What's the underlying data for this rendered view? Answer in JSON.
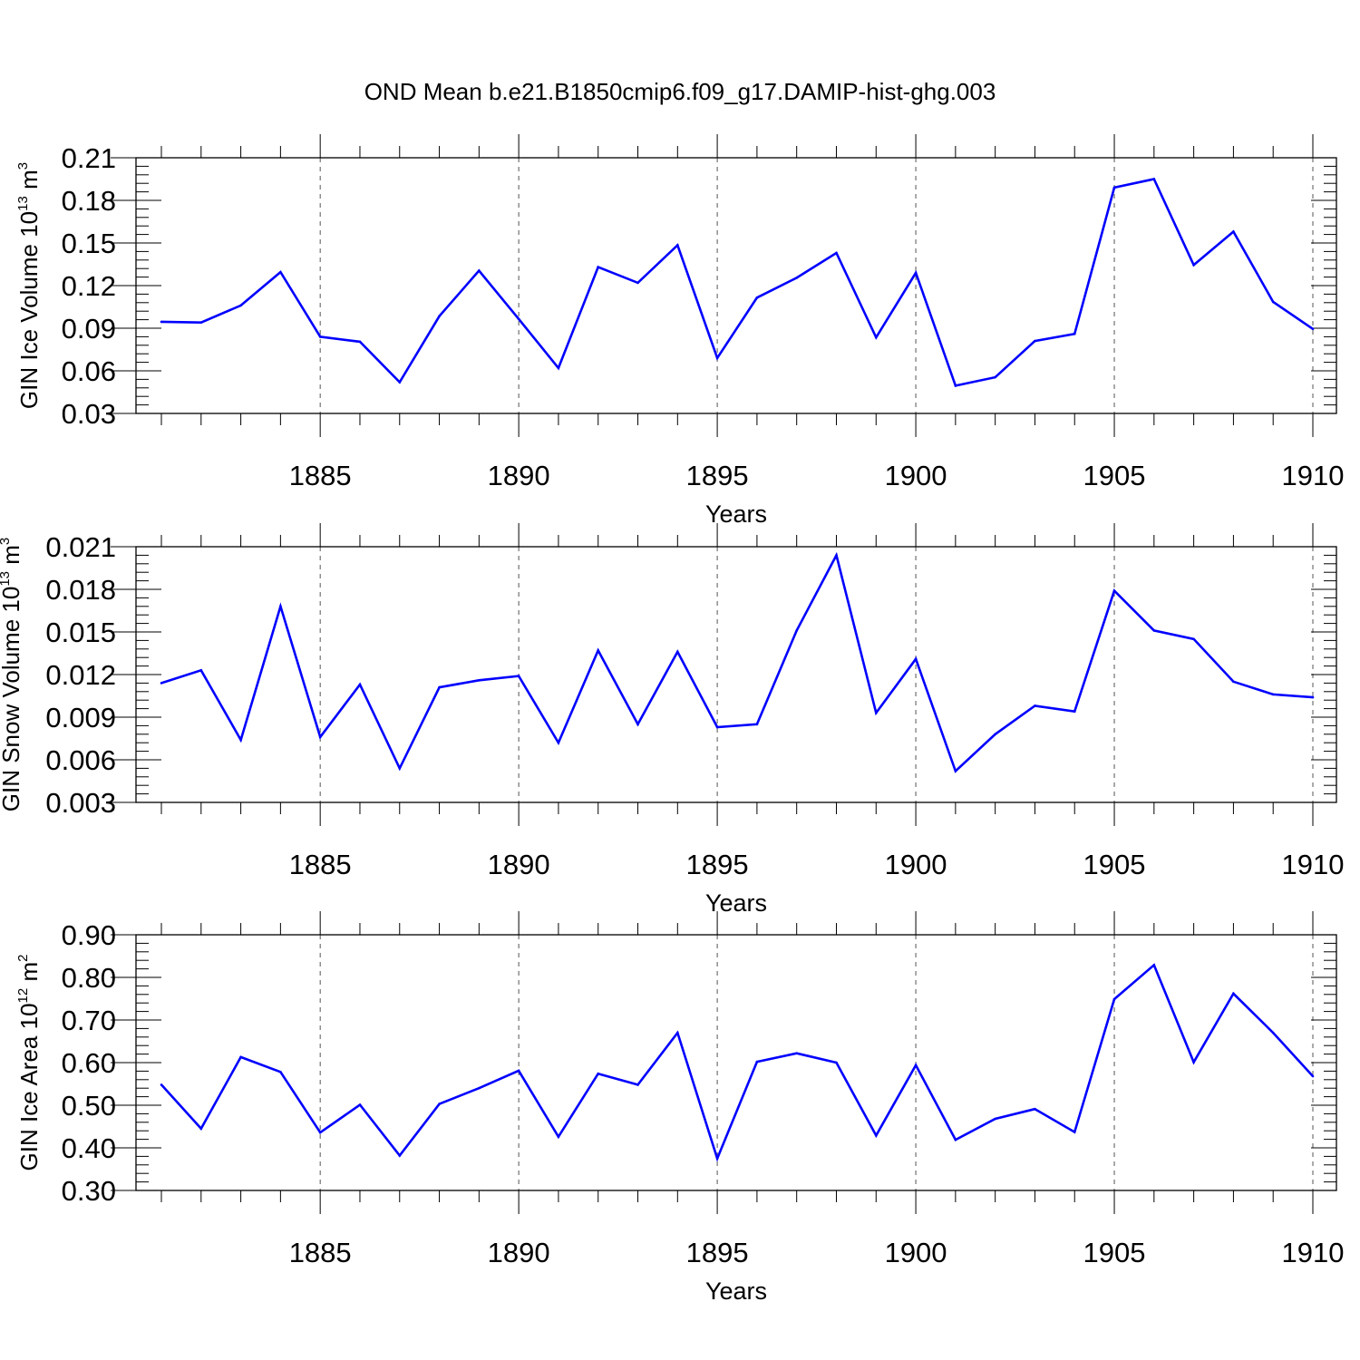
{
  "title": "OND Mean b.e21.B1850cmip6.f09_g17.DAMIP-hist-ghg.003",
  "colors": {
    "line": "#0000ff",
    "axis": "#000000",
    "grid": "#555555"
  },
  "chart_data": [
    {
      "type": "line",
      "ylabel": {
        "prefix": "GIN Ice Volume 10",
        "exp": "13",
        "unit": " m",
        "unit_exp": "3"
      },
      "xlabel": "Years",
      "xlim": [
        1881,
        1910
      ],
      "ylim": [
        0.03,
        0.21
      ],
      "yticks": [
        "0.03",
        "0.06",
        "0.09",
        "0.12",
        "0.15",
        "0.18",
        "0.21"
      ],
      "ytick_values": [
        0.03,
        0.06,
        0.09,
        0.12,
        0.15,
        0.18,
        0.21
      ],
      "xticks": [
        "1885",
        "1890",
        "1895",
        "1900",
        "1905",
        "1910"
      ],
      "xtick_values": [
        1885,
        1890,
        1895,
        1900,
        1905,
        1910
      ],
      "grid": "vertical dashed at major x ticks",
      "x": [
        1881,
        1882,
        1883,
        1884,
        1885,
        1886,
        1887,
        1888,
        1889,
        1890,
        1891,
        1892,
        1893,
        1894,
        1895,
        1896,
        1897,
        1898,
        1899,
        1900,
        1901,
        1902,
        1903,
        1904,
        1905,
        1906,
        1907,
        1908,
        1909,
        1910
      ],
      "values": [
        0.0945,
        0.094,
        0.106,
        0.1295,
        0.084,
        0.0805,
        0.052,
        0.0985,
        0.1305,
        0.0965,
        0.062,
        0.133,
        0.122,
        0.1485,
        0.069,
        0.1115,
        0.1255,
        0.143,
        0.0835,
        0.129,
        0.0495,
        0.0555,
        0.081,
        0.086,
        0.189,
        0.195,
        0.1345,
        0.158,
        0.1085,
        0.0895
      ]
    },
    {
      "type": "line",
      "ylabel": {
        "prefix": "GIN Snow Volume 10",
        "exp": "13",
        "unit": " m",
        "unit_exp": "3"
      },
      "xlabel": "Years",
      "xlim": [
        1881,
        1910
      ],
      "ylim": [
        0.003,
        0.021
      ],
      "yticks": [
        "0.003",
        "0.006",
        "0.009",
        "0.012",
        "0.015",
        "0.018",
        "0.021"
      ],
      "ytick_values": [
        0.003,
        0.006,
        0.009,
        0.012,
        0.015,
        0.018,
        0.021
      ],
      "xticks": [
        "1885",
        "1890",
        "1895",
        "1900",
        "1905",
        "1910"
      ],
      "xtick_values": [
        1885,
        1890,
        1895,
        1900,
        1905,
        1910
      ],
      "grid": "vertical dashed at major x ticks",
      "x": [
        1881,
        1882,
        1883,
        1884,
        1885,
        1886,
        1887,
        1888,
        1889,
        1890,
        1891,
        1892,
        1893,
        1894,
        1895,
        1896,
        1897,
        1898,
        1899,
        1900,
        1901,
        1902,
        1903,
        1904,
        1905,
        1906,
        1907,
        1908,
        1909,
        1910
      ],
      "values": [
        0.0114,
        0.0123,
        0.0074,
        0.0168,
        0.0076,
        0.0113,
        0.0054,
        0.0111,
        0.0116,
        0.0119,
        0.0072,
        0.0137,
        0.0085,
        0.0136,
        0.0083,
        0.0085,
        0.0151,
        0.0204,
        0.0093,
        0.0131,
        0.0052,
        0.0078,
        0.0098,
        0.0094,
        0.0179,
        0.0151,
        0.0145,
        0.0115,
        0.0106,
        0.0104
      ]
    },
    {
      "type": "line",
      "ylabel": {
        "prefix": "GIN Ice Area 10",
        "exp": "12",
        "unit": " m",
        "unit_exp": "2"
      },
      "xlabel": "Years",
      "xlim": [
        1881,
        1910
      ],
      "ylim": [
        0.3,
        0.9
      ],
      "yticks": [
        "0.30",
        "0.40",
        "0.50",
        "0.60",
        "0.70",
        "0.80",
        "0.90"
      ],
      "ytick_values": [
        0.3,
        0.4,
        0.5,
        0.6,
        0.7,
        0.8,
        0.9
      ],
      "xticks": [
        "1885",
        "1890",
        "1895",
        "1900",
        "1905",
        "1910"
      ],
      "xtick_values": [
        1885,
        1890,
        1895,
        1900,
        1905,
        1910
      ],
      "grid": "vertical dashed at major x ticks",
      "x": [
        1881,
        1882,
        1883,
        1884,
        1885,
        1886,
        1887,
        1888,
        1889,
        1890,
        1891,
        1892,
        1893,
        1894,
        1895,
        1896,
        1897,
        1898,
        1899,
        1900,
        1901,
        1902,
        1903,
        1904,
        1905,
        1906,
        1907,
        1908,
        1909,
        1910
      ],
      "values": [
        0.548,
        0.445,
        0.613,
        0.578,
        0.436,
        0.501,
        0.382,
        0.503,
        0.54,
        0.581,
        0.426,
        0.574,
        0.548,
        0.67,
        0.375,
        0.602,
        0.622,
        0.6,
        0.429,
        0.594,
        0.419,
        0.468,
        0.491,
        0.437,
        0.749,
        0.829,
        0.601,
        0.762,
        0.67,
        0.568
      ]
    }
  ]
}
